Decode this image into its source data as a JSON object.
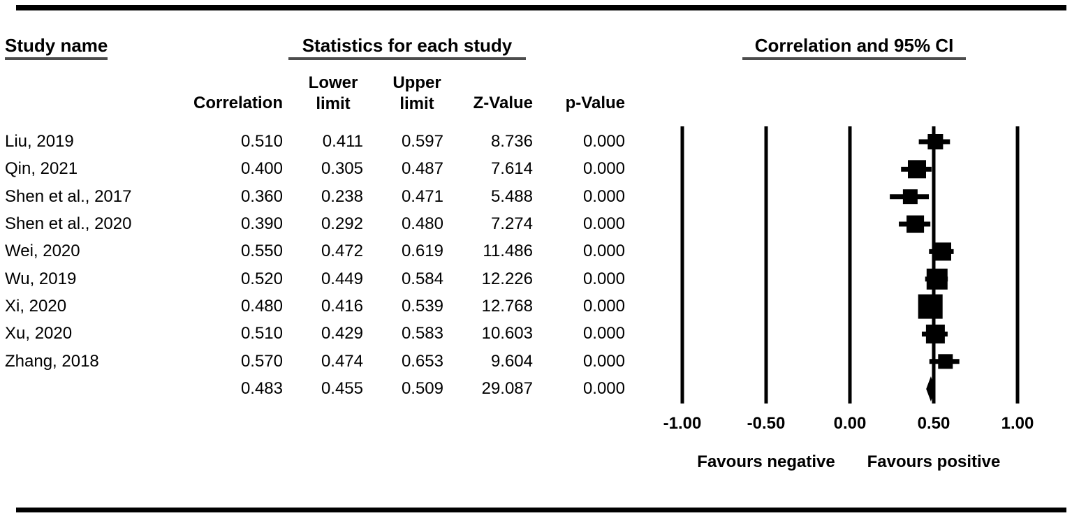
{
  "frame": {
    "background": "#ffffff",
    "rule_color": "#000000",
    "underline_color": "#4d4d4d"
  },
  "table": {
    "title_study": "Study name",
    "title_stats": "Statistics for each study",
    "columns": {
      "correlation": "Correlation",
      "lower_line1": "Lower",
      "lower_line2": "limit",
      "upper_line1": "Upper",
      "upper_line2": "limit",
      "z": "Z-Value",
      "p": "p-Value"
    }
  },
  "chart_data": {
    "type": "forest",
    "title": "Correlation and 95% CI",
    "xlim": [
      -1,
      1
    ],
    "x_tick_values": [
      -1.0,
      -0.5,
      0.0,
      0.5,
      1.0
    ],
    "x_tick_labels": [
      "-1.00",
      "-0.50",
      "0.00",
      "0.50",
      "1.00"
    ],
    "grid": "vertical-lines-at-ticks",
    "footer_left": "Favours negative",
    "footer_right": "Favours positive",
    "marker_color": "#000000",
    "studies": [
      {
        "name": "Liu, 2019",
        "correlation": "0.510",
        "lower": "0.411",
        "upper": "0.597",
        "z_value": "8.736",
        "p_value": "0.000",
        "marker_size": 22
      },
      {
        "name": "Qin, 2021",
        "correlation": "0.400",
        "lower": "0.305",
        "upper": "0.487",
        "z_value": "7.614",
        "p_value": "0.000",
        "marker_size": 26
      },
      {
        "name": "Shen et al., 2017",
        "correlation": "0.360",
        "lower": "0.238",
        "upper": "0.471",
        "z_value": "5.488",
        "p_value": "0.000",
        "marker_size": 21
      },
      {
        "name": "Shen et al., 2020",
        "correlation": "0.390",
        "lower": "0.292",
        "upper": "0.480",
        "z_value": "7.274",
        "p_value": "0.000",
        "marker_size": 25
      },
      {
        "name": "Wei, 2020",
        "correlation": "0.550",
        "lower": "0.472",
        "upper": "0.619",
        "z_value": "11.486",
        "p_value": "0.000",
        "marker_size": 26
      },
      {
        "name": "Wu, 2019",
        "correlation": "0.520",
        "lower": "0.449",
        "upper": "0.584",
        "z_value": "12.226",
        "p_value": "0.000",
        "marker_size": 30
      },
      {
        "name": "Xi, 2020",
        "correlation": "0.480",
        "lower": "0.416",
        "upper": "0.539",
        "z_value": "12.768",
        "p_value": "0.000",
        "marker_size": 35
      },
      {
        "name": "Xu, 2020",
        "correlation": "0.510",
        "lower": "0.429",
        "upper": "0.583",
        "z_value": "10.603",
        "p_value": "0.000",
        "marker_size": 27
      },
      {
        "name": "Zhang, 2018",
        "correlation": "0.570",
        "lower": "0.474",
        "upper": "0.653",
        "z_value": "9.604",
        "p_value": "0.000",
        "marker_size": 21
      }
    ],
    "summary": {
      "name": "",
      "correlation": "0.483",
      "lower": "0.455",
      "upper": "0.509",
      "z_value": "29.087",
      "p_value": "0.000",
      "shape": "diamond"
    }
  }
}
